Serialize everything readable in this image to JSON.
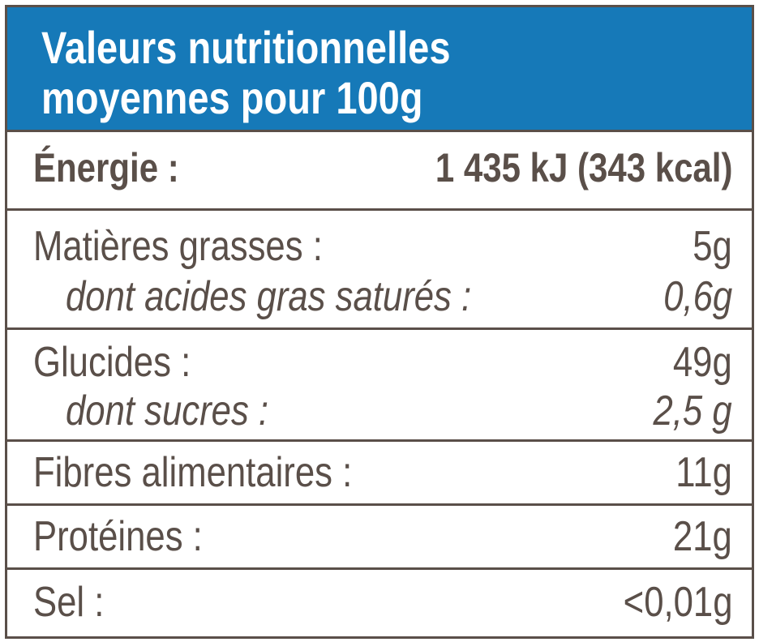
{
  "header": {
    "title_line1": "Valeurs nutritionnelles",
    "title_line2": "moyennes pour 100g",
    "background_color": "#1679b8",
    "text_color": "#ffffff"
  },
  "border_color": "#5a4f49",
  "text_color": "#5a4f49",
  "rows": [
    {
      "label": "Énergie :",
      "value": "1 435 kJ (343 kcal)"
    },
    {
      "label": "Matières grasses :",
      "value": "5g",
      "sub_label": "dont acides gras saturés :",
      "sub_value": "0,6g"
    },
    {
      "label": "Glucides :",
      "value": "49g",
      "sub_label": "dont sucres :",
      "sub_value": "2,5 g"
    },
    {
      "label": "Fibres alimentaires :",
      "value": "11g"
    },
    {
      "label": "Protéines :",
      "value": "21g"
    },
    {
      "label": "Sel :",
      "value": "<0,01g"
    }
  ]
}
